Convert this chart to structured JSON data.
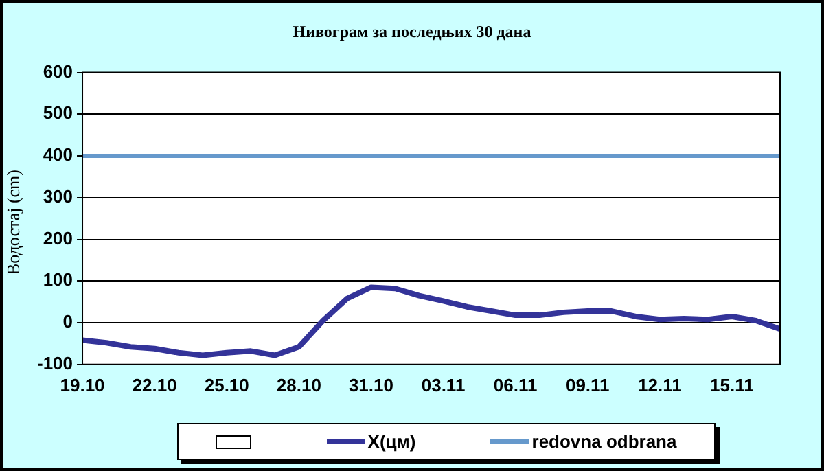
{
  "chart_data": {
    "type": "line",
    "title": "Нивограм за последњих 30 дана",
    "ylabel": "Водостај (cm)",
    "categories": [
      "19.10",
      null,
      null,
      "22.10",
      null,
      null,
      "25.10",
      null,
      null,
      "28.10",
      null,
      null,
      "31.10",
      null,
      null,
      "03.11",
      null,
      null,
      "06.11",
      null,
      null,
      "09.11",
      null,
      null,
      "12.11",
      null,
      null,
      "15.11",
      null,
      null
    ],
    "series": [
      {
        "name": "X(цм)",
        "color": "#333399",
        "values": [
          -42,
          -48,
          -58,
          -62,
          -72,
          -78,
          -72,
          -68,
          -78,
          -58,
          5,
          58,
          85,
          82,
          65,
          52,
          38,
          28,
          18,
          18,
          25,
          28,
          28,
          15,
          8,
          10,
          8,
          15,
          5,
          -15
        ]
      }
    ],
    "ref_lines": [
      {
        "axis": "y",
        "value": 400,
        "label": "redovna odbrana",
        "color": "#6699cc"
      }
    ],
    "ylim": [
      -100,
      600
    ],
    "yticks": [
      -100,
      0,
      100,
      200,
      300,
      400,
      500,
      600
    ],
    "grid": "y",
    "legend": "bottom",
    "marker": "none",
    "line_style": "solid"
  }
}
